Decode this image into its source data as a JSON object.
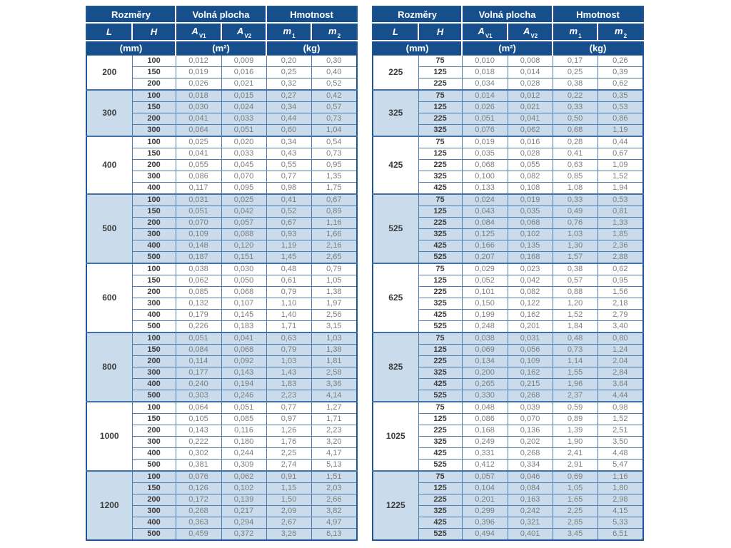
{
  "header": {
    "groups": [
      "Rozměry",
      "Volná plocha",
      "Hmotnost"
    ],
    "cols": [
      {
        "base": "L",
        "sub": ""
      },
      {
        "base": "H",
        "sub": ""
      },
      {
        "base": "A",
        "sub": "V1"
      },
      {
        "base": "A",
        "sub": "V2"
      },
      {
        "base": "m",
        "sub": "1"
      },
      {
        "base": "m",
        "sub": "2"
      }
    ],
    "units": [
      "(mm)",
      "(m²)",
      "(kg)"
    ]
  },
  "colors": {
    "header_bg": "#164f8c",
    "band_bg": "#cadcec",
    "grid_line": "#4d7cae",
    "value_text": "#7d7d7d",
    "bold_text": "#3c3c3c"
  },
  "tables": [
    {
      "groups": [
        {
          "L": "200",
          "rows": [
            [
              "100",
              "0,012",
              "0,009",
              "0,20",
              "0,30"
            ],
            [
              "150",
              "0,019",
              "0,016",
              "0,25",
              "0,40"
            ],
            [
              "200",
              "0,026",
              "0,021",
              "0,32",
              "0,52"
            ]
          ]
        },
        {
          "L": "300",
          "rows": [
            [
              "100",
              "0,018",
              "0,015",
              "0,27",
              "0,42"
            ],
            [
              "150",
              "0,030",
              "0,024",
              "0,34",
              "0,57"
            ],
            [
              "200",
              "0,041",
              "0,033",
              "0,44",
              "0,73"
            ],
            [
              "300",
              "0,064",
              "0,051",
              "0,60",
              "1,04"
            ]
          ]
        },
        {
          "L": "400",
          "rows": [
            [
              "100",
              "0,025",
              "0,020",
              "0,34",
              "0,54"
            ],
            [
              "150",
              "0,041",
              "0,033",
              "0,43",
              "0,73"
            ],
            [
              "200",
              "0,055",
              "0,045",
              "0,55",
              "0,95"
            ],
            [
              "300",
              "0,086",
              "0,070",
              "0,77",
              "1,35"
            ],
            [
              "400",
              "0,117",
              "0,095",
              "0,98",
              "1,75"
            ]
          ]
        },
        {
          "L": "500",
          "rows": [
            [
              "100",
              "0,031",
              "0,025",
              "0,41",
              "0,67"
            ],
            [
              "150",
              "0,051",
              "0,042",
              "0,52",
              "0,89"
            ],
            [
              "200",
              "0,070",
              "0,057",
              "0,67",
              "1,16"
            ],
            [
              "300",
              "0,109",
              "0,088",
              "0,93",
              "1,66"
            ],
            [
              "400",
              "0,148",
              "0,120",
              "1,19",
              "2,16"
            ],
            [
              "500",
              "0,187",
              "0,151",
              "1,45",
              "2,65"
            ]
          ]
        },
        {
          "L": "600",
          "rows": [
            [
              "100",
              "0,038",
              "0,030",
              "0,48",
              "0,79"
            ],
            [
              "150",
              "0,062",
              "0,050",
              "0,61",
              "1,05"
            ],
            [
              "200",
              "0,085",
              "0,068",
              "0,79",
              "1,38"
            ],
            [
              "300",
              "0,132",
              "0,107",
              "1,10",
              "1,97"
            ],
            [
              "400",
              "0,179",
              "0,145",
              "1,40",
              "2,56"
            ],
            [
              "500",
              "0,226",
              "0,183",
              "1,71",
              "3,15"
            ]
          ]
        },
        {
          "L": "800",
          "rows": [
            [
              "100",
              "0,051",
              "0,041",
              "0,63",
              "1,03"
            ],
            [
              "150",
              "0,084",
              "0,068",
              "0,79",
              "1,38"
            ],
            [
              "200",
              "0,114",
              "0,092",
              "1,03",
              "1,81"
            ],
            [
              "300",
              "0,177",
              "0,143",
              "1,43",
              "2,58"
            ],
            [
              "400",
              "0,240",
              "0,194",
              "1,83",
              "3,36"
            ],
            [
              "500",
              "0,303",
              "0,246",
              "2,23",
              "4,14"
            ]
          ]
        },
        {
          "L": "1000",
          "rows": [
            [
              "100",
              "0,064",
              "0,051",
              "0,77",
              "1,27"
            ],
            [
              "150",
              "0,105",
              "0,085",
              "0,97",
              "1,71"
            ],
            [
              "200",
              "0,143",
              "0,116",
              "1,26",
              "2,23"
            ],
            [
              "300",
              "0,222",
              "0,180",
              "1,76",
              "3,20"
            ],
            [
              "400",
              "0,302",
              "0,244",
              "2,25",
              "4,17"
            ],
            [
              "500",
              "0,381",
              "0,309",
              "2,74",
              "5,13"
            ]
          ]
        },
        {
          "L": "1200",
          "rows": [
            [
              "100",
              "0,076",
              "0,062",
              "0,91",
              "1,51"
            ],
            [
              "150",
              "0,126",
              "0,102",
              "1,15",
              "2,03"
            ],
            [
              "200",
              "0,172",
              "0,139",
              "1,50",
              "2,66"
            ],
            [
              "300",
              "0,268",
              "0,217",
              "2,09",
              "3,82"
            ],
            [
              "400",
              "0,363",
              "0,294",
              "2,67",
              "4,97"
            ],
            [
              "500",
              "0,459",
              "0,372",
              "3,26",
              "6,13"
            ]
          ]
        }
      ]
    },
    {
      "groups": [
        {
          "L": "225",
          "rows": [
            [
              "75",
              "0,010",
              "0,008",
              "0,17",
              "0,26"
            ],
            [
              "125",
              "0,018",
              "0,014",
              "0,25",
              "0,39"
            ],
            [
              "225",
              "0,034",
              "0,028",
              "0,38",
              "0,62"
            ]
          ]
        },
        {
          "L": "325",
          "rows": [
            [
              "75",
              "0,014",
              "0,012",
              "0,22",
              "0,35"
            ],
            [
              "125",
              "0,026",
              "0,021",
              "0,33",
              "0,53"
            ],
            [
              "225",
              "0,051",
              "0,041",
              "0,50",
              "0,86"
            ],
            [
              "325",
              "0,076",
              "0,062",
              "0,68",
              "1,19"
            ]
          ]
        },
        {
          "L": "425",
          "rows": [
            [
              "75",
              "0,019",
              "0,016",
              "0,28",
              "0,44"
            ],
            [
              "125",
              "0,035",
              "0,028",
              "0,41",
              "0,67"
            ],
            [
              "225",
              "0,068",
              "0,055",
              "0,63",
              "1,09"
            ],
            [
              "325",
              "0,100",
              "0,082",
              "0,85",
              "1,52"
            ],
            [
              "425",
              "0,133",
              "0,108",
              "1,08",
              "1,94"
            ]
          ]
        },
        {
          "L": "525",
          "rows": [
            [
              "75",
              "0,024",
              "0,019",
              "0,33",
              "0,53"
            ],
            [
              "125",
              "0,043",
              "0,035",
              "0,49",
              "0,81"
            ],
            [
              "225",
              "0,084",
              "0,068",
              "0,76",
              "1,33"
            ],
            [
              "325",
              "0,125",
              "0,102",
              "1,03",
              "1,85"
            ],
            [
              "425",
              "0,166",
              "0,135",
              "1,30",
              "2,36"
            ],
            [
              "525",
              "0,207",
              "0,168",
              "1,57",
              "2,88"
            ]
          ]
        },
        {
          "L": "625",
          "rows": [
            [
              "75",
              "0,029",
              "0,023",
              "0,38",
              "0,62"
            ],
            [
              "125",
              "0,052",
              "0,042",
              "0,57",
              "0,95"
            ],
            [
              "225",
              "0,101",
              "0,082",
              "0,88",
              "1,56"
            ],
            [
              "325",
              "0,150",
              "0,122",
              "1,20",
              "2,18"
            ],
            [
              "425",
              "0,199",
              "0,162",
              "1,52",
              "2,79"
            ],
            [
              "525",
              "0,248",
              "0,201",
              "1,84",
              "3,40"
            ]
          ]
        },
        {
          "L": "825",
          "rows": [
            [
              "75",
              "0,038",
              "0,031",
              "0,48",
              "0,80"
            ],
            [
              "125",
              "0,069",
              "0,056",
              "0,73",
              "1,24"
            ],
            [
              "225",
              "0,134",
              "0,109",
              "1,14",
              "2,04"
            ],
            [
              "325",
              "0,200",
              "0,162",
              "1,55",
              "2,84"
            ],
            [
              "425",
              "0,265",
              "0,215",
              "1,96",
              "3,64"
            ],
            [
              "525",
              "0,330",
              "0,268",
              "2,37",
              "4,44"
            ]
          ]
        },
        {
          "L": "1025",
          "rows": [
            [
              "75",
              "0,048",
              "0,039",
              "0,59",
              "0,98"
            ],
            [
              "125",
              "0,086",
              "0,070",
              "0,89",
              "1,52"
            ],
            [
              "225",
              "0,168",
              "0,136",
              "1,39",
              "2,51"
            ],
            [
              "325",
              "0,249",
              "0,202",
              "1,90",
              "3,50"
            ],
            [
              "425",
              "0,331",
              "0,268",
              "2,41",
              "4,48"
            ],
            [
              "525",
              "0,412",
              "0,334",
              "2,91",
              "5,47"
            ]
          ]
        },
        {
          "L": "1225",
          "rows": [
            [
              "75",
              "0,057",
              "0,046",
              "0,69",
              "1,16"
            ],
            [
              "125",
              "0,104",
              "0,084",
              "1,05",
              "1,80"
            ],
            [
              "225",
              "0,201",
              "0,163",
              "1,65",
              "2,98"
            ],
            [
              "325",
              "0,299",
              "0,242",
              "2,25",
              "4,15"
            ],
            [
              "425",
              "0,396",
              "0,321",
              "2,85",
              "5,33"
            ],
            [
              "525",
              "0,494",
              "0,401",
              "3,45",
              "6,51"
            ]
          ]
        }
      ]
    }
  ]
}
